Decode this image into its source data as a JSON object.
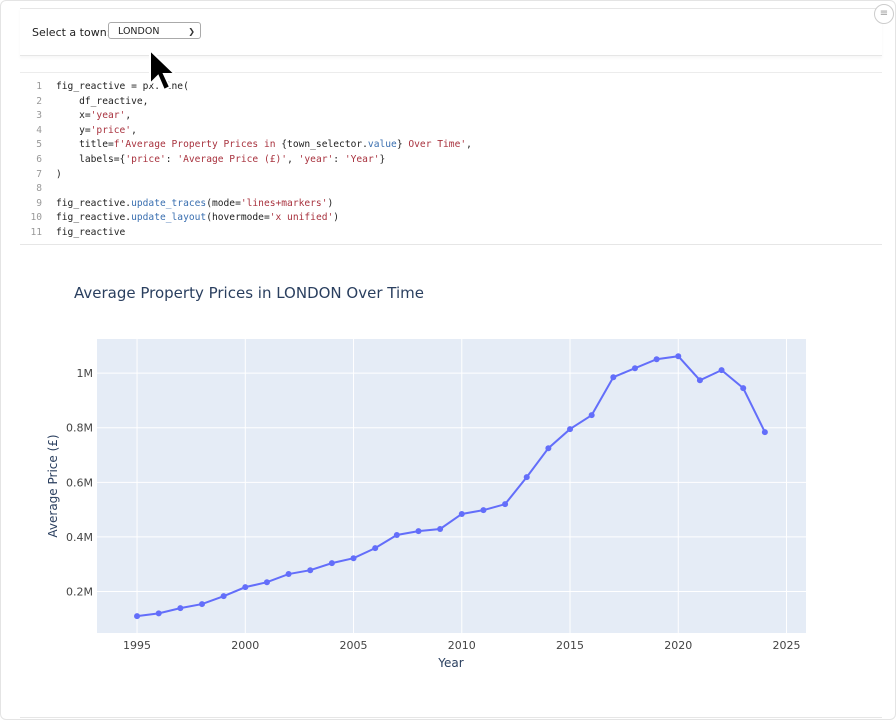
{
  "widget": {
    "label": "Select a town:",
    "selected": "LONDON",
    "chevron_icon": "chevron-down-icon"
  },
  "menu_icon": "hamburger-menu-icon",
  "code": {
    "lines": [
      [
        {
          "t": "fig_reactive = px.line(",
          "c": ""
        }
      ],
      [
        {
          "t": "    df_reactive,",
          "c": ""
        }
      ],
      [
        {
          "t": "    x=",
          "c": ""
        },
        {
          "t": "'year'",
          "c": "str"
        },
        {
          "t": ",",
          "c": ""
        }
      ],
      [
        {
          "t": "    y=",
          "c": ""
        },
        {
          "t": "'price'",
          "c": "str"
        },
        {
          "t": ",",
          "c": ""
        }
      ],
      [
        {
          "t": "    title=",
          "c": ""
        },
        {
          "t": "f'Average Property Prices in ",
          "c": "str"
        },
        {
          "t": "{town_selector.",
          "c": ""
        },
        {
          "t": "value",
          "c": "attr"
        },
        {
          "t": "}",
          "c": ""
        },
        {
          "t": " Over Time'",
          "c": "str"
        },
        {
          "t": ",",
          "c": ""
        }
      ],
      [
        {
          "t": "    labels={",
          "c": ""
        },
        {
          "t": "'price'",
          "c": "str"
        },
        {
          "t": ": ",
          "c": ""
        },
        {
          "t": "'Average Price (£)'",
          "c": "str"
        },
        {
          "t": ", ",
          "c": ""
        },
        {
          "t": "'year'",
          "c": "str"
        },
        {
          "t": ": ",
          "c": ""
        },
        {
          "t": "'Year'",
          "c": "str"
        },
        {
          "t": "}",
          "c": ""
        }
      ],
      [
        {
          "t": ")",
          "c": ""
        }
      ],
      [
        {
          "t": "",
          "c": ""
        }
      ],
      [
        {
          "t": "fig_reactive.",
          "c": ""
        },
        {
          "t": "update_traces",
          "c": "attr"
        },
        {
          "t": "(mode=",
          "c": ""
        },
        {
          "t": "'lines+markers'",
          "c": "str"
        },
        {
          "t": ")",
          "c": ""
        }
      ],
      [
        {
          "t": "fig_reactive.",
          "c": ""
        },
        {
          "t": "update_layout",
          "c": "attr"
        },
        {
          "t": "(hovermode=",
          "c": ""
        },
        {
          "t": "'x unified'",
          "c": "str"
        },
        {
          "t": ")",
          "c": ""
        }
      ],
      [
        {
          "t": "fig_reactive",
          "c": ""
        }
      ]
    ],
    "line_numbers": [
      "1",
      "2",
      "3",
      "4",
      "5",
      "6",
      "7",
      "8",
      "9",
      "10",
      "11"
    ]
  },
  "chart_data": {
    "type": "line",
    "title": "Average Property Prices in LONDON Over Time",
    "xlabel": "Year",
    "ylabel": "Average Price (£)",
    "x": [
      1995,
      1996,
      1997,
      1998,
      1999,
      2000,
      2001,
      2002,
      2003,
      2004,
      2005,
      2006,
      2007,
      2008,
      2009,
      2010,
      2011,
      2012,
      2013,
      2014,
      2015,
      2016,
      2017,
      2018,
      2019,
      2020,
      2021,
      2022,
      2023,
      2024
    ],
    "y": [
      110000,
      120000,
      139000,
      154000,
      183000,
      216000,
      234000,
      264000,
      278000,
      304000,
      322000,
      359000,
      407000,
      421000,
      429000,
      484000,
      498000,
      520000,
      619000,
      725000,
      795000,
      846000,
      985000,
      1018000,
      1051000,
      1062000,
      974000,
      1011000,
      945000,
      784000
    ],
    "xlim": [
      1993.15,
      2025.9
    ],
    "ylim": [
      48000,
      1125000
    ],
    "x_ticks": [
      1995,
      2000,
      2005,
      2010,
      2015,
      2020,
      2025
    ],
    "x_tick_labels": [
      "1995",
      "2000",
      "2005",
      "2010",
      "2015",
      "2020",
      "2025"
    ],
    "y_ticks": [
      200000,
      400000,
      600000,
      800000,
      1000000
    ],
    "y_tick_labels": [
      "0.2M",
      "0.4M",
      "0.6M",
      "0.8M",
      "1M"
    ],
    "grid": true,
    "mode": "lines+markers",
    "colors": {
      "line": "#636efa",
      "plot_bg": "#e5ecf6",
      "grid": "#ffffff"
    }
  }
}
